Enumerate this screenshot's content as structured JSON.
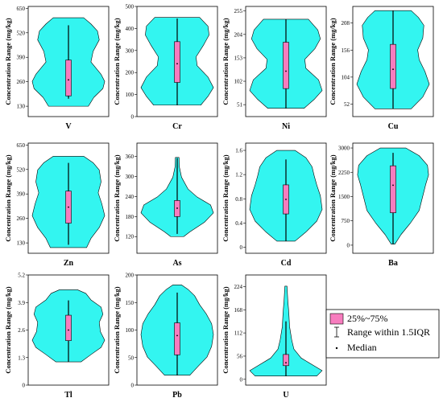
{
  "chart_data": {
    "type": "violin",
    "ylabel": "Concentration Range (mg/kg)",
    "legend": {
      "placement": "bottom-right",
      "items": [
        {
          "key": "box",
          "label": "25%~75%"
        },
        {
          "key": "whisker",
          "label": "Range within 1.5IQR"
        },
        {
          "key": "median",
          "label": "Median"
        }
      ]
    },
    "colors": {
      "violin": "#33f5f0",
      "box": "#f77cbe",
      "line": "#000000"
    },
    "panels": [
      {
        "element": "V",
        "ylim": [
          75,
          660
        ],
        "ticks": [
          130,
          260,
          390,
          520,
          650
        ],
        "q1": 185,
        "median": 270,
        "q3": 375,
        "whisker": [
          170,
          560
        ],
        "range": [
          130,
          600
        ],
        "density": [
          [
            0,
            0.55
          ],
          [
            0.1,
            0.7
          ],
          [
            0.2,
            0.95
          ],
          [
            0.28,
            1.0
          ],
          [
            0.36,
            0.9
          ],
          [
            0.5,
            0.62
          ],
          [
            0.62,
            0.68
          ],
          [
            0.75,
            0.85
          ],
          [
            0.85,
            0.8
          ],
          [
            0.93,
            0.62
          ],
          [
            1,
            0.42
          ]
        ]
      },
      {
        "element": "Cr",
        "ylim": [
          0,
          500
        ],
        "ticks": [
          0,
          100,
          200,
          300,
          400,
          500
        ],
        "q1": 155,
        "median": 240,
        "q3": 340,
        "whisker": [
          52,
          445
        ],
        "range": [
          52,
          450
        ],
        "density": [
          [
            0,
            0.65
          ],
          [
            0.1,
            0.85
          ],
          [
            0.2,
            1.0
          ],
          [
            0.32,
            0.85
          ],
          [
            0.45,
            0.55
          ],
          [
            0.55,
            0.52
          ],
          [
            0.68,
            0.72
          ],
          [
            0.8,
            0.88
          ],
          [
            0.9,
            0.85
          ],
          [
            1,
            0.62
          ]
        ]
      },
      {
        "element": "Ni",
        "ylim": [
          25,
          265
        ],
        "ticks": [
          51,
          102,
          153,
          204,
          255
        ],
        "q1": 86,
        "median": 124,
        "q3": 187,
        "whisker": [
          43,
          237
        ],
        "range": [
          43,
          237
        ],
        "density": [
          [
            0,
            0.5
          ],
          [
            0.1,
            0.78
          ],
          [
            0.2,
            1.0
          ],
          [
            0.32,
            0.9
          ],
          [
            0.45,
            0.55
          ],
          [
            0.55,
            0.52
          ],
          [
            0.67,
            0.8
          ],
          [
            0.78,
            0.95
          ],
          [
            0.88,
            0.88
          ],
          [
            1,
            0.62
          ]
        ]
      },
      {
        "element": "Cu",
        "ylim": [
          28,
          240
        ],
        "ticks": [
          52,
          104,
          156,
          208
        ],
        "q1": 82,
        "median": 119,
        "q3": 167,
        "whisker": [
          43,
          232
        ],
        "range": [
          43,
          232
        ],
        "density": [
          [
            0,
            0.5
          ],
          [
            0.12,
            0.82
          ],
          [
            0.25,
            1.0
          ],
          [
            0.38,
            0.88
          ],
          [
            0.5,
            0.72
          ],
          [
            0.6,
            0.68
          ],
          [
            0.72,
            0.82
          ],
          [
            0.85,
            0.85
          ],
          [
            0.93,
            0.7
          ],
          [
            1,
            0.5
          ]
        ]
      },
      {
        "element": "Zn",
        "ylim": [
          75,
          660
        ],
        "ticks": [
          130,
          260,
          390,
          520,
          650
        ],
        "q1": 235,
        "median": 320,
        "q3": 405,
        "whisker": [
          120,
          555
        ],
        "range": [
          105,
          590
        ],
        "density": [
          [
            0,
            0.5
          ],
          [
            0.1,
            0.62
          ],
          [
            0.22,
            0.85
          ],
          [
            0.35,
            1.0
          ],
          [
            0.48,
            0.92
          ],
          [
            0.6,
            0.82
          ],
          [
            0.72,
            0.9
          ],
          [
            0.85,
            0.85
          ],
          [
            0.93,
            0.68
          ],
          [
            1,
            0.42
          ]
        ]
      },
      {
        "element": "As",
        "ylim": [
          70,
          400
        ],
        "ticks": [
          120,
          180,
          240,
          300,
          360
        ],
        "q1": 180,
        "median": 205,
        "q3": 228,
        "whisker": [
          128,
          355
        ],
        "range": [
          120,
          357
        ],
        "density": [
          [
            0,
            0.18
          ],
          [
            0.06,
            0.35
          ],
          [
            0.18,
            0.75
          ],
          [
            0.3,
            1.0
          ],
          [
            0.4,
            0.92
          ],
          [
            0.5,
            0.55
          ],
          [
            0.6,
            0.3
          ],
          [
            0.75,
            0.12
          ],
          [
            0.88,
            0.06
          ],
          [
            1,
            0.05
          ]
        ]
      },
      {
        "element": "Cd",
        "ylim": [
          -0.1,
          1.72
        ],
        "ticks": [
          0.0,
          0.4,
          0.8,
          1.2,
          1.6
        ],
        "q1": 0.55,
        "median": 0.79,
        "q3": 1.03,
        "whisker": [
          0.1,
          1.45
        ],
        "range": [
          0.1,
          1.6
        ],
        "density": [
          [
            0,
            0.25
          ],
          [
            0.1,
            0.55
          ],
          [
            0.22,
            0.85
          ],
          [
            0.35,
            1.0
          ],
          [
            0.5,
            0.95
          ],
          [
            0.62,
            0.85
          ],
          [
            0.72,
            0.78
          ],
          [
            0.82,
            0.72
          ],
          [
            0.92,
            0.55
          ],
          [
            1,
            0.25
          ]
        ]
      },
      {
        "element": "Ba",
        "ylim": [
          -250,
          3150
        ],
        "ticks": [
          0,
          750,
          1500,
          2250,
          3000
        ],
        "q1": 1000,
        "median": 1850,
        "q3": 2450,
        "whisker": [
          30,
          2850
        ],
        "range": [
          30,
          3000
        ],
        "density": [
          [
            0,
            0.05
          ],
          [
            0.1,
            0.22
          ],
          [
            0.22,
            0.48
          ],
          [
            0.35,
            0.72
          ],
          [
            0.5,
            0.82
          ],
          [
            0.62,
            0.9
          ],
          [
            0.72,
            0.98
          ],
          [
            0.82,
            0.95
          ],
          [
            0.92,
            0.72
          ],
          [
            1,
            0.35
          ]
        ]
      },
      {
        "element": "Tl",
        "ylim": [
          0,
          5.2
        ],
        "ticks": [
          0.0,
          1.3,
          2.6,
          3.9,
          5.2
        ],
        "q1": 2.1,
        "median": 2.6,
        "q3": 3.3,
        "whisker": [
          1.1,
          4.0
        ],
        "range": [
          1.1,
          4.5
        ],
        "density": [
          [
            0,
            0.35
          ],
          [
            0.1,
            0.62
          ],
          [
            0.2,
            0.9
          ],
          [
            0.3,
            1.0
          ],
          [
            0.42,
            0.88
          ],
          [
            0.55,
            0.85
          ],
          [
            0.66,
            0.95
          ],
          [
            0.76,
            0.9
          ],
          [
            0.86,
            0.62
          ],
          [
            0.95,
            0.48
          ],
          [
            1,
            0.25
          ]
        ]
      },
      {
        "element": "Pb",
        "ylim": [
          0,
          200
        ],
        "ticks": [
          0,
          50,
          100,
          150,
          200
        ],
        "q1": 55,
        "median": 90,
        "q3": 113,
        "whisker": [
          18,
          168
        ],
        "range": [
          18,
          182
        ],
        "density": [
          [
            0,
            0.35
          ],
          [
            0.1,
            0.58
          ],
          [
            0.2,
            0.82
          ],
          [
            0.32,
            0.95
          ],
          [
            0.45,
            1.0
          ],
          [
            0.57,
            0.95
          ],
          [
            0.68,
            0.8
          ],
          [
            0.78,
            0.62
          ],
          [
            0.88,
            0.48
          ],
          [
            0.95,
            0.3
          ],
          [
            1,
            0.12
          ]
        ]
      },
      {
        "element": "U",
        "ylim": [
          -14,
          252
        ],
        "ticks": [
          0,
          56,
          112,
          168,
          224
        ],
        "q1": 33,
        "median": 40,
        "q3": 60,
        "whisker": [
          8,
          140
        ],
        "range": [
          8,
          225
        ],
        "density": [
          [
            0,
            0.85
          ],
          [
            0.06,
            1.0
          ],
          [
            0.12,
            0.75
          ],
          [
            0.2,
            0.42
          ],
          [
            0.3,
            0.22
          ],
          [
            0.4,
            0.16
          ],
          [
            0.55,
            0.1
          ],
          [
            0.7,
            0.08
          ],
          [
            0.85,
            0.05
          ],
          [
            1,
            0.03
          ]
        ]
      }
    ]
  }
}
